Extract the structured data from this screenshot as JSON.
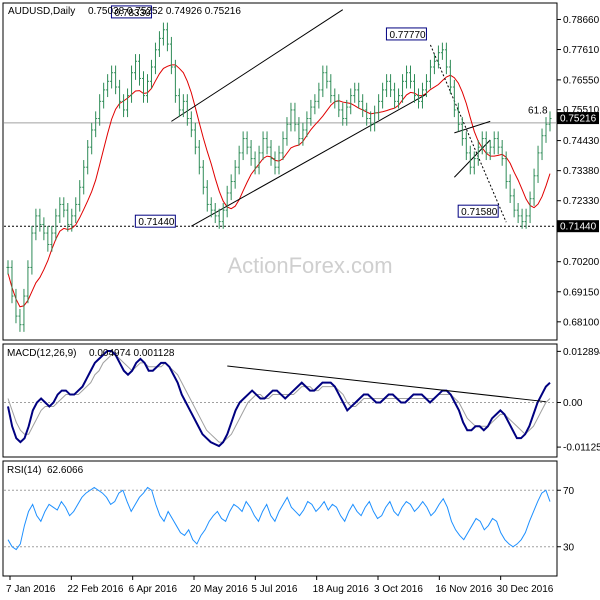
{
  "header": {
    "symbol": "AUDUSD,Daily",
    "ohlc": "0.75038 0.75252 0.74926 0.75216"
  },
  "watermark": "ActionForex.com",
  "chart_data": [
    {
      "type": "candlestick",
      "title": "AUDUSD,Daily",
      "ylim": [
        0.675,
        0.792
      ],
      "y_ticks": [
        "0.78660",
        "0.77610",
        "0.76550",
        "0.75510",
        "0.74430",
        "0.73380",
        "0.72330",
        "0.71440",
        "0.70200",
        "0.69150",
        "0.68100"
      ],
      "last_price": "0.75216",
      "x_ticks": [
        "7 Jan 2016",
        "22 Feb 2016",
        "6 Apr 2016",
        "20 May 2016",
        "5 Jul 2016",
        "18 Aug 2016",
        "3 Oct 2016",
        "16 Nov 2016",
        "30 Dec 2016"
      ],
      "annotations": [
        {
          "label": "0.78330",
          "value": 0.7833,
          "date": "Apr 2016"
        },
        {
          "label": "0.71440",
          "value": 0.7144,
          "date": "May 2016"
        },
        {
          "label": "0.77770",
          "value": 0.7777,
          "date": "Nov 2016"
        },
        {
          "label": "0.71580",
          "value": 0.7158,
          "date": "Dec 2016"
        },
        {
          "label": "61.8",
          "value": 0.752,
          "date": "Jan 2017"
        }
      ],
      "close": [
        0.7,
        0.69,
        0.683,
        0.68,
        0.69,
        0.7,
        0.712,
        0.718,
        0.715,
        0.712,
        0.708,
        0.712,
        0.718,
        0.722,
        0.72,
        0.715,
        0.718,
        0.722,
        0.728,
        0.735,
        0.742,
        0.748,
        0.752,
        0.758,
        0.762,
        0.765,
        0.768,
        0.763,
        0.758,
        0.755,
        0.76,
        0.768,
        0.772,
        0.766,
        0.76,
        0.765,
        0.77,
        0.776,
        0.78,
        0.783,
        0.778,
        0.77,
        0.76,
        0.755,
        0.758,
        0.752,
        0.748,
        0.742,
        0.735,
        0.728,
        0.722,
        0.72,
        0.718,
        0.716,
        0.72,
        0.726,
        0.73,
        0.735,
        0.74,
        0.745,
        0.742,
        0.738,
        0.735,
        0.74,
        0.745,
        0.742,
        0.738,
        0.735,
        0.74,
        0.745,
        0.75,
        0.755,
        0.75,
        0.745,
        0.748,
        0.752,
        0.756,
        0.758,
        0.762,
        0.768,
        0.765,
        0.76,
        0.758,
        0.755,
        0.752,
        0.756,
        0.76,
        0.762,
        0.758,
        0.755,
        0.752,
        0.75,
        0.754,
        0.758,
        0.762,
        0.765,
        0.762,
        0.758,
        0.76,
        0.765,
        0.768,
        0.765,
        0.76,
        0.758,
        0.762,
        0.765,
        0.77,
        0.772,
        0.775,
        0.776,
        0.77,
        0.763,
        0.755,
        0.75,
        0.745,
        0.74,
        0.735,
        0.738,
        0.742,
        0.745,
        0.74,
        0.742,
        0.745,
        0.742,
        0.738,
        0.73,
        0.725,
        0.72,
        0.718,
        0.716,
        0.718,
        0.724,
        0.732,
        0.74,
        0.746,
        0.75,
        0.752
      ]
    },
    {
      "type": "line",
      "title": "MACD(12,26,9)",
      "values_text": "0.004974 0.001128",
      "y_ticks": [
        "0.012894",
        "0.00",
        "-0.011253"
      ],
      "ylim": [
        -0.0135,
        0.0145
      ],
      "series": [
        {
          "name": "MACD",
          "color": "#000080",
          "values": [
            -0.001,
            -0.006,
            -0.009,
            -0.01,
            -0.009,
            -0.006,
            -0.002,
            0.0,
            0.001,
            0.0,
            -0.001,
            0.0,
            0.002,
            0.003,
            0.003,
            0.002,
            0.002,
            0.003,
            0.004,
            0.006,
            0.008,
            0.01,
            0.011,
            0.012,
            0.013,
            0.013,
            0.012,
            0.01,
            0.008,
            0.007,
            0.008,
            0.01,
            0.011,
            0.01,
            0.008,
            0.008,
            0.009,
            0.01,
            0.01,
            0.009,
            0.007,
            0.005,
            0.002,
            0.0,
            -0.002,
            -0.004,
            -0.006,
            -0.008,
            -0.009,
            -0.01,
            -0.0105,
            -0.011,
            -0.01,
            -0.008,
            -0.005,
            -0.002,
            0.0,
            0.001,
            0.002,
            0.003,
            0.002,
            0.001,
            0.001,
            0.002,
            0.003,
            0.003,
            0.002,
            0.001,
            0.002,
            0.003,
            0.004,
            0.005,
            0.004,
            0.003,
            0.003,
            0.004,
            0.005,
            0.005,
            0.005,
            0.004,
            0.002,
            0.0,
            -0.002,
            -0.001,
            0.0,
            0.001,
            0.002,
            0.002,
            0.001,
            0.0,
            0.0,
            0.001,
            0.002,
            0.002,
            0.001,
            0.0,
            0.0,
            0.001,
            0.002,
            0.002,
            0.002,
            0.001,
            0.0,
            0.001,
            0.002,
            0.003,
            0.003,
            0.002,
            0.0,
            -0.002,
            -0.005,
            -0.007,
            -0.007,
            -0.006,
            -0.006,
            -0.007,
            -0.006,
            -0.004,
            -0.003,
            -0.002,
            -0.003,
            -0.005,
            -0.007,
            -0.009,
            -0.009,
            -0.008,
            -0.006,
            -0.003,
            0.0,
            0.002,
            0.004,
            0.005
          ]
        },
        {
          "name": "Signal",
          "color": "#a0a0a0",
          "values": [
            0.001,
            -0.002,
            -0.005,
            -0.007,
            -0.008,
            -0.008,
            -0.006,
            -0.004,
            -0.002,
            -0.001,
            -0.001,
            -0.001,
            0.0,
            0.001,
            0.002,
            0.002,
            0.002,
            0.002,
            0.003,
            0.004,
            0.005,
            0.007,
            0.008,
            0.01,
            0.011,
            0.012,
            0.012,
            0.011,
            0.01,
            0.009,
            0.008,
            0.009,
            0.01,
            0.01,
            0.009,
            0.009,
            0.009,
            0.009,
            0.01,
            0.009,
            0.008,
            0.007,
            0.005,
            0.003,
            0.001,
            -0.001,
            -0.003,
            -0.005,
            -0.007,
            -0.008,
            -0.009,
            -0.01,
            -0.01,
            -0.009,
            -0.008,
            -0.006,
            -0.004,
            -0.002,
            0.0,
            0.001,
            0.002,
            0.002,
            0.001,
            0.001,
            0.002,
            0.002,
            0.002,
            0.002,
            0.002,
            0.002,
            0.003,
            0.004,
            0.004,
            0.004,
            0.003,
            0.003,
            0.004,
            0.004,
            0.004,
            0.004,
            0.003,
            0.002,
            0.0,
            -0.001,
            -0.001,
            0.0,
            0.001,
            0.001,
            0.001,
            0.001,
            0.001,
            0.001,
            0.001,
            0.001,
            0.001,
            0.001,
            0.001,
            0.001,
            0.001,
            0.001,
            0.001,
            0.001,
            0.001,
            0.001,
            0.002,
            0.002,
            0.002,
            0.002,
            0.001,
            0.0,
            -0.002,
            -0.004,
            -0.005,
            -0.006,
            -0.006,
            -0.006,
            -0.006,
            -0.005,
            -0.004,
            -0.003,
            -0.003,
            -0.004,
            -0.005,
            -0.006,
            -0.007,
            -0.008,
            -0.007,
            -0.006,
            -0.004,
            -0.002,
            0.0,
            0.001
          ]
        }
      ]
    },
    {
      "type": "line",
      "title": "RSI(14)",
      "value_text": "62.6066",
      "y_ticks": [
        "70",
        "30"
      ],
      "ylim": [
        10,
        90
      ],
      "series": [
        {
          "name": "RSI",
          "color": "#1e90ff",
          "values": [
            35,
            30,
            28,
            32,
            45,
            55,
            60,
            52,
            48,
            55,
            60,
            58,
            56,
            62,
            58,
            52,
            55,
            60,
            65,
            68,
            70,
            72,
            70,
            68,
            65,
            60,
            62,
            68,
            70,
            62,
            55,
            60,
            65,
            68,
            72,
            70,
            60,
            52,
            48,
            55,
            50,
            45,
            40,
            38,
            42,
            35,
            32,
            38,
            42,
            48,
            52,
            55,
            50,
            48,
            55,
            60,
            58,
            55,
            62,
            58,
            52,
            48,
            55,
            60,
            52,
            48,
            55,
            60,
            65,
            58,
            55,
            52,
            56,
            62,
            60,
            55,
            58,
            62,
            56,
            60,
            58,
            52,
            48,
            55,
            60,
            55,
            52,
            58,
            62,
            55,
            50,
            52,
            58,
            62,
            55,
            52,
            58,
            62,
            60,
            55,
            58,
            62,
            58,
            52,
            55,
            60,
            64,
            58,
            48,
            42,
            38,
            35,
            40,
            45,
            50,
            48,
            42,
            45,
            50,
            48,
            40,
            35,
            32,
            30,
            32,
            35,
            40,
            48,
            55,
            62,
            68,
            70,
            62
          ]
        }
      ]
    }
  ]
}
